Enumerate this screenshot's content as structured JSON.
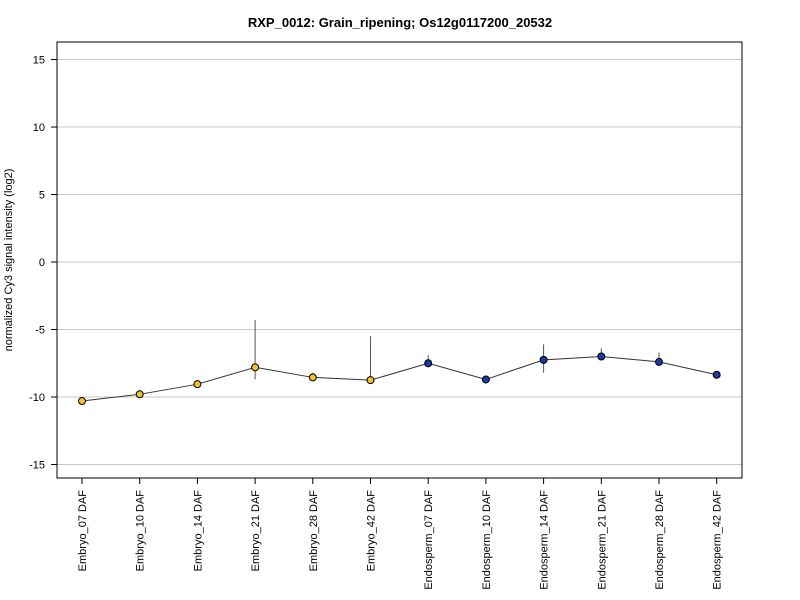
{
  "chart_data": {
    "type": "line",
    "title": "RXP_0012: Grain_ripening; Os12g0117200_20532",
    "xlabel": "",
    "ylabel": "normalized Cy3 signal intensity (log2)",
    "ylim": [
      -16,
      16.3
    ],
    "yticks": [
      15,
      10,
      5,
      0,
      -5,
      -10,
      -15
    ],
    "grid": true,
    "categories": [
      "Embryo_07 DAF",
      "Embryo_10 DAF",
      "Embryo_14 DAF",
      "Embryo_21 DAF",
      "Embryo_28 DAF",
      "Embryo_42 DAF",
      "Endosperm_07 DAF",
      "Endosperm_10 DAF",
      "Endosperm_14 DAF",
      "Endosperm_21 DAF",
      "Endosperm_28 DAF",
      "Endosperm_42 DAF"
    ],
    "values": [
      -10.3,
      -9.8,
      -9.05,
      -7.8,
      -8.55,
      -8.75,
      -7.5,
      -8.7,
      -7.25,
      -7.0,
      -7.4,
      -8.35
    ],
    "error_bars": [
      [
        -10.3,
        -10.3
      ],
      [
        -10.0,
        -9.6
      ],
      [
        -9.2,
        -8.9
      ],
      [
        -8.7,
        -4.3
      ],
      [
        -8.85,
        -8.2
      ],
      [
        -8.8,
        -5.5
      ],
      [
        -7.8,
        -6.9
      ],
      [
        -8.8,
        -8.6
      ],
      [
        -8.2,
        -6.1
      ],
      [
        -7.2,
        -6.4
      ],
      [
        -7.7,
        -6.7
      ],
      [
        -8.4,
        -8.3
      ]
    ],
    "point_colors": [
      "#f2c12e",
      "#f2c12e",
      "#f2c12e",
      "#f2c12e",
      "#f2c12e",
      "#f2c12e",
      "#1a3aa8",
      "#1a3aa8",
      "#1a3aa8",
      "#1a3aa8",
      "#1a3aa8",
      "#1a3aa8"
    ]
  }
}
